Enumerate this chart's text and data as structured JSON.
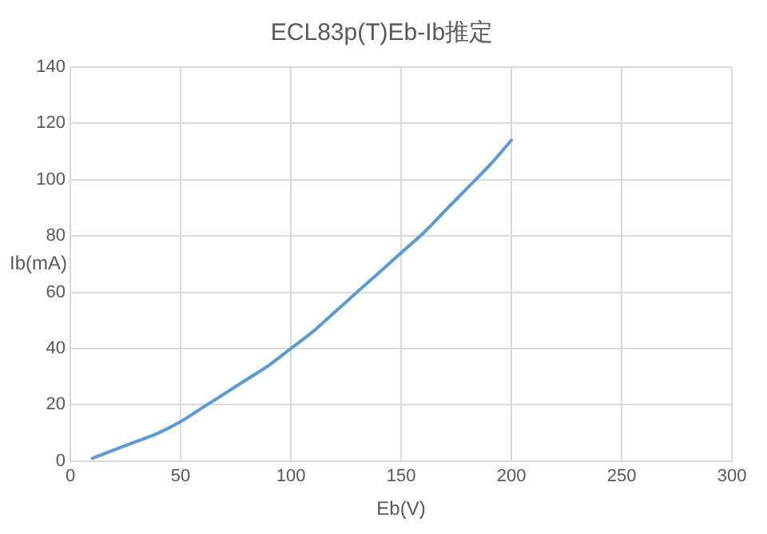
{
  "chart_data": {
    "type": "line",
    "title": "ECL83p(T)Eb-Ib推定",
    "xlabel": "Eb(V)",
    "ylabel": "Ib(mA)",
    "x": [
      10,
      20,
      30,
      40,
      50,
      60,
      70,
      80,
      90,
      100,
      110,
      120,
      130,
      140,
      150,
      160,
      170,
      180,
      190,
      200
    ],
    "series": [
      {
        "color": "#5b9bd5",
        "values": [
          1,
          4,
          7,
          10,
          14,
          19,
          24,
          29,
          34,
          40,
          46,
          53,
          60,
          67,
          74,
          81,
          89,
          97,
          105,
          114
        ]
      }
    ],
    "xlim": [
      0,
      300
    ],
    "xticks": [
      0,
      50,
      100,
      150,
      200,
      250,
      300
    ],
    "ylim": [
      0,
      140
    ],
    "yticks": [
      0,
      20,
      40,
      60,
      80,
      100,
      120,
      140
    ],
    "grid": true,
    "legend": false,
    "marker": "none",
    "line_style": "solid"
  }
}
